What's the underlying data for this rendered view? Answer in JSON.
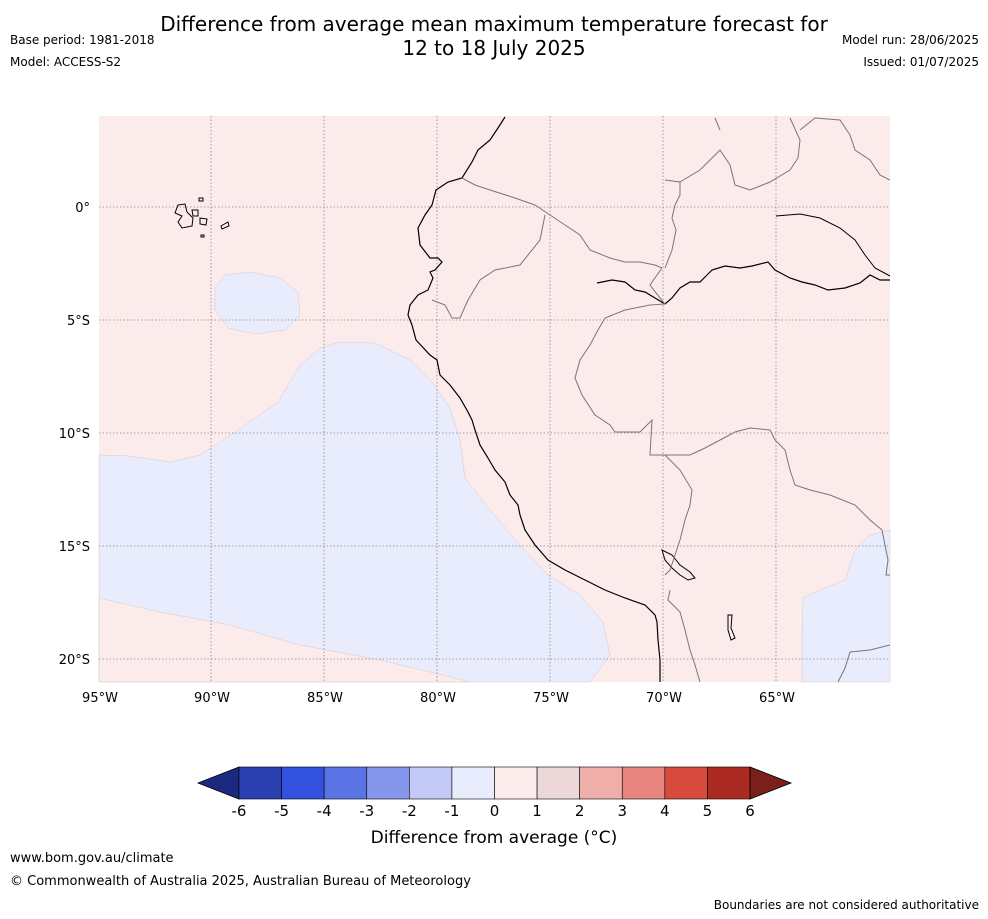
{
  "title_line1": "Difference from average mean maximum temperature forecast for",
  "title_line2": "12 to 18 July 2025",
  "base_period": "Base period: 1981-2018",
  "model": "Model: ACCESS-S2",
  "model_run": "Model run: 28/06/2025",
  "issued": "Issued: 01/07/2025",
  "lat_labels": [
    "0°",
    "5°S",
    "10°S",
    "15°S",
    "20°S"
  ],
  "lon_labels": [
    "95°W",
    "90°W",
    "85°W",
    "80°W",
    "75°W",
    "70°W",
    "65°W"
  ],
  "colorbar": {
    "ticks": [
      "-6",
      "-5",
      "-4",
      "-3",
      "-2",
      "-1",
      "0",
      "1",
      "2",
      "3",
      "4",
      "5",
      "6"
    ],
    "colors": [
      "#1b2a80",
      "#2a3fb0",
      "#3452e0",
      "#5a74e6",
      "#8497ec",
      "#c2c9f5",
      "#e8ecfc",
      "#fcebeb",
      "#ecd8d8",
      "#efaeaa",
      "#e6867e",
      "#d94a3e",
      "#ab2a22",
      "#7a1f1a"
    ],
    "label": "Difference from average ($^\\circ$C)",
    "label_display": "Difference from average (°C)"
  },
  "map_fill": {
    "warm": "#fcebeb",
    "cool": "#e8ecfc"
  },
  "site": "www.bom.gov.au/climate",
  "copyright": "© Commonwealth of Australia 2025, Australian Bureau of Meteorology",
  "disclaimer": "Boundaries are not considered authoritative"
}
